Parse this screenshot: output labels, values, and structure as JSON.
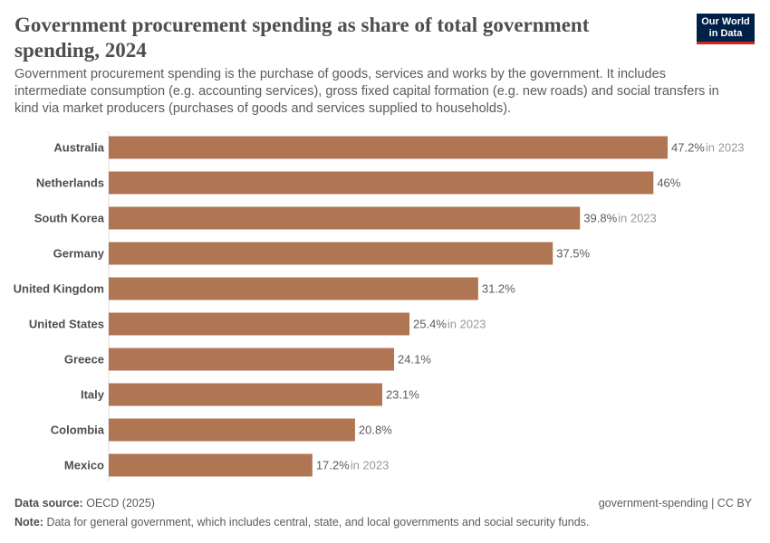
{
  "header": {
    "title": "Government procurement spending as share of total government spending, 2024",
    "subtitle": "Government procurement spending is the purchase of goods, services and works by the government. It includes intermediate consumption (e.g. accounting services), gross fixed capital formation (e.g. new roads) and social transfers in kind via market producers (purchases of goods and services supplied to households).",
    "logo_line1": "Our World",
    "logo_line2": "in Data"
  },
  "chart_data": {
    "type": "bar",
    "orientation": "horizontal",
    "unit": "%",
    "bar_color": "#b07553",
    "categories": [
      "Australia",
      "Netherlands",
      "South Korea",
      "Germany",
      "United Kingdom",
      "United States",
      "Greece",
      "Italy",
      "Colombia",
      "Mexico"
    ],
    "values": [
      47.2,
      46,
      39.8,
      37.5,
      31.2,
      25.4,
      24.1,
      23.1,
      20.8,
      17.2
    ],
    "labels": [
      "47.2%",
      "46%",
      "39.8%",
      "37.5%",
      "31.2%",
      "25.4%",
      "24.1%",
      "23.1%",
      "20.8%",
      "17.2%"
    ],
    "annotations": [
      "in 2023",
      "",
      "in 2023",
      "",
      "",
      "in 2023",
      "",
      "",
      "",
      "in 2023"
    ],
    "xlim": [
      0,
      47.2
    ]
  },
  "footer": {
    "source_label": "Data source:",
    "source": "OECD (2025)",
    "right": "government-spending | CC BY",
    "note_label": "Note:",
    "note": "Data for general government, which includes central, state, and local governments and social security funds."
  }
}
